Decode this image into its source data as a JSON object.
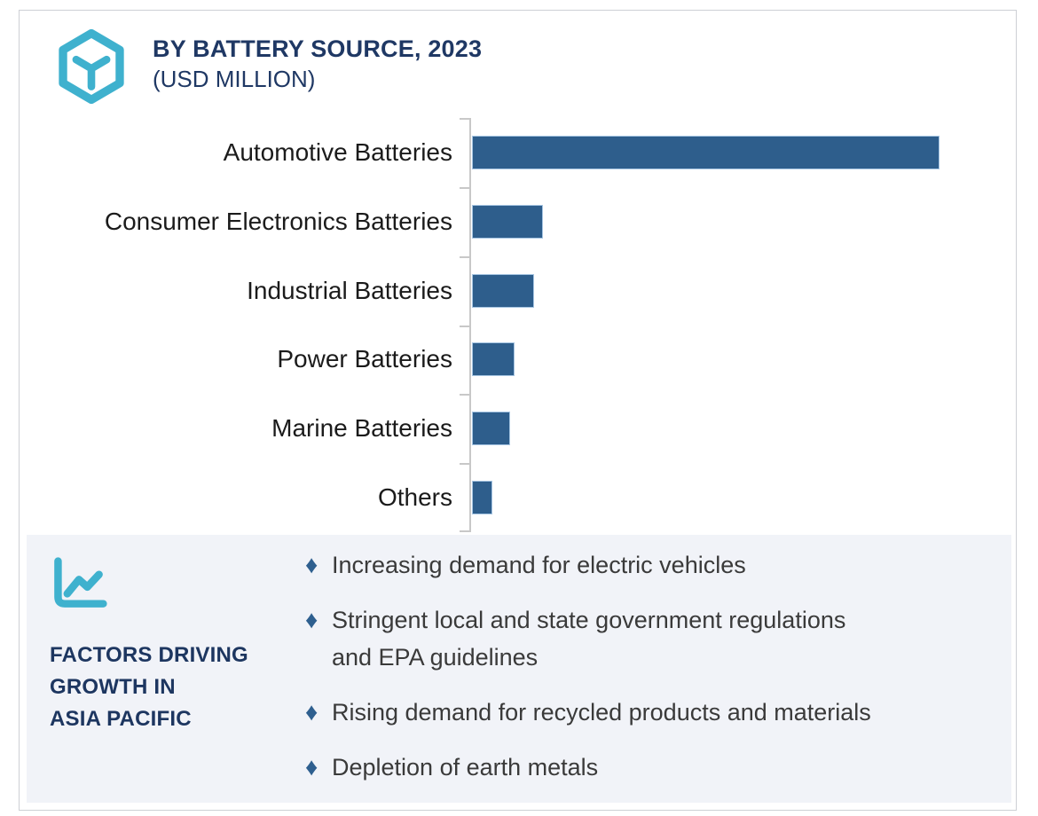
{
  "header": {
    "icon": "hex-cube-icon",
    "title": "BY BATTERY SOURCE, 2023",
    "subtitle": "(USD MILLION)"
  },
  "chart_data": {
    "type": "bar",
    "orientation": "horizontal",
    "title": "BY BATTERY SOURCE, 2023 (USD MILLION)",
    "categories": [
      "Automotive Batteries",
      "Consumer Electronics Batteries",
      "Industrial Batteries",
      "Power Batteries",
      "Marine Batteries",
      "Others"
    ],
    "values": [
      100,
      15.2,
      13.3,
      9.1,
      8.2,
      4.4
    ],
    "value_axis_labels_visible": false,
    "values_are_relative_to_max": 100,
    "grid": false,
    "legend": false,
    "bar_color": "#2E5E8C",
    "bar_border_color": "#A6C5E2",
    "axis_color": "#C8C8C8"
  },
  "factors_panel": {
    "icon": "trend-line-icon",
    "heading_lines": [
      "FACTORS DRIVING",
      "GROWTH IN",
      "ASIA PACIFIC"
    ],
    "bullet_glyph": "♦",
    "bullets": [
      "Increasing demand for electric vehicles",
      "Stringent local and state government regulations\nand EPA guidelines",
      "Rising demand for recycled products and materials",
      "Depletion of earth metals"
    ]
  },
  "colors": {
    "accent_cyan": "#3FB1CE",
    "navy": "#1F3864",
    "bar_blue": "#2E5E8C",
    "panel_bg": "#F1F3F8",
    "bullet_diamond": "#2E5F8F"
  }
}
